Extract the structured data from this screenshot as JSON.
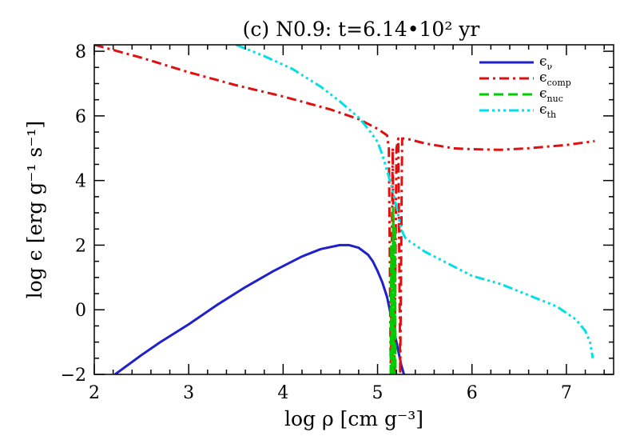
{
  "chart_data": {
    "type": "line",
    "title": "(c) N0.9: t=6.14•10² yr",
    "xlabel": "log ρ [cm g⁻³]",
    "ylabel": "log ϵ [erg g⁻¹ s⁻¹]",
    "xlim": [
      2,
      7.5
    ],
    "ylim": [
      -2,
      8.2
    ],
    "xticks": [
      2,
      3,
      4,
      5,
      6,
      7
    ],
    "yticks": [
      -2,
      0,
      2,
      4,
      6,
      8
    ],
    "xtick_labels": [
      "2",
      "3",
      "4",
      "5",
      "6",
      "7"
    ],
    "ytick_labels": [
      "−2",
      "0",
      "2",
      "4",
      "6",
      "8"
    ],
    "grid": false,
    "legend_position": "top-right",
    "series": [
      {
        "name": "ϵ_ν",
        "symbol": "ϵ",
        "sub": "ν",
        "color": "#2020cc",
        "style": "solid",
        "x": [
          2.22,
          2.5,
          2.7,
          3.0,
          3.3,
          3.6,
          3.9,
          4.2,
          4.4,
          4.6,
          4.7,
          4.8,
          4.9,
          4.95,
          5.0,
          5.05,
          5.1,
          5.15,
          5.2,
          5.25,
          5.28
        ],
        "y": [
          -2.0,
          -1.4,
          -1.0,
          -0.45,
          0.15,
          0.7,
          1.2,
          1.65,
          1.88,
          2.0,
          2.0,
          1.92,
          1.7,
          1.5,
          1.2,
          0.85,
          0.4,
          -0.3,
          -1.0,
          -1.7,
          -2.0
        ]
      },
      {
        "name": "ϵ_comp",
        "symbol": "ϵ",
        "sub": "comp",
        "color": "#e01010",
        "style": "dashdot",
        "x": [
          2.0,
          2.5,
          3.0,
          3.5,
          4.0,
          4.5,
          4.8,
          5.0,
          5.1,
          5.12,
          5.14,
          5.16,
          5.18,
          5.2,
          5.22,
          5.24,
          5.26,
          5.3,
          5.5,
          5.8,
          6.0,
          6.3,
          6.6,
          7.0,
          7.3
        ],
        "y": [
          8.2,
          7.8,
          7.35,
          6.95,
          6.6,
          6.2,
          5.9,
          5.6,
          5.4,
          5.0,
          -2.0,
          5.0,
          -2.0,
          5.0,
          5.3,
          -2.0,
          5.3,
          5.3,
          5.15,
          5.0,
          4.97,
          4.95,
          5.0,
          5.1,
          5.22
        ]
      },
      {
        "name": "ϵ_nuc",
        "symbol": "ϵ",
        "sub": "nuc",
        "color": "#00cc00",
        "style": "dashed",
        "x": [
          5.14,
          5.145,
          5.15,
          5.16,
          5.165,
          5.17,
          5.18,
          5.185,
          5.19,
          5.2
        ],
        "y": [
          -2.0,
          2.0,
          -2.0,
          -2.0,
          3.2,
          -2.0,
          -2.0,
          2.6,
          -2.0,
          -2.0
        ]
      },
      {
        "name": "ϵ_th",
        "symbol": "ϵ",
        "sub": "th",
        "color": "#00e0e8",
        "style": "dashdotdotdot",
        "x": [
          3.5,
          3.8,
          4.1,
          4.4,
          4.6,
          4.8,
          4.9,
          5.0,
          5.05,
          5.1,
          5.15,
          5.2,
          5.25,
          5.28,
          5.3,
          5.5,
          5.8,
          6.0,
          6.3,
          6.6,
          6.9,
          7.1,
          7.2,
          7.25,
          7.28
        ],
        "y": [
          8.2,
          7.85,
          7.45,
          6.9,
          6.45,
          5.95,
          5.6,
          5.2,
          4.8,
          4.3,
          3.8,
          3.2,
          2.5,
          2.3,
          2.2,
          1.8,
          1.35,
          1.05,
          0.8,
          0.45,
          0.1,
          -0.3,
          -0.65,
          -1.0,
          -1.5
        ]
      }
    ]
  }
}
